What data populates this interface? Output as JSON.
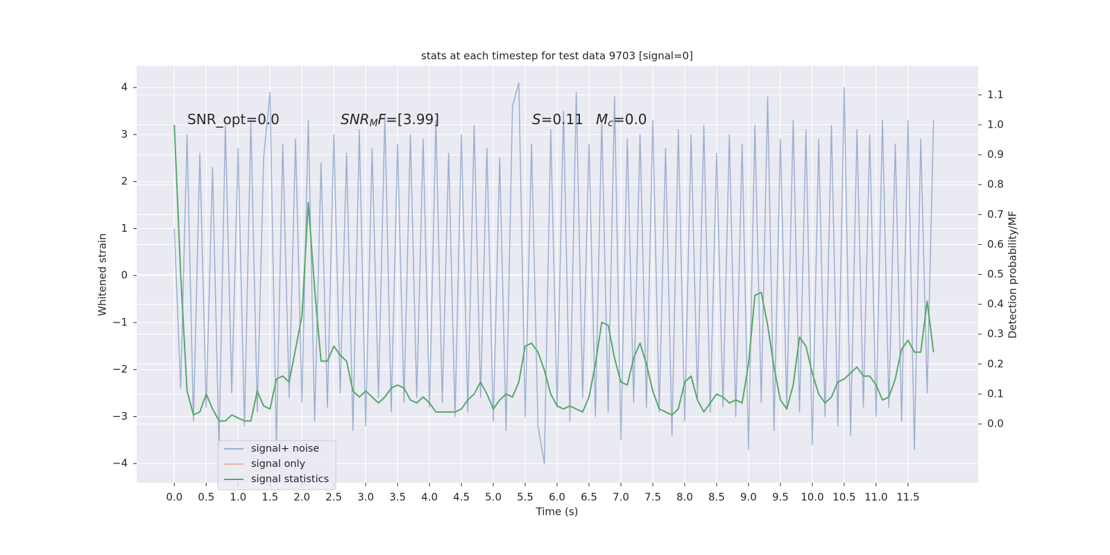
{
  "chart_data": {
    "type": "line",
    "title": "stats at each timestep for test data 9703 [signal=0]",
    "xlabel": "Time (s)",
    "ylabel": "Whitened strain",
    "y2label": "Detection probability/MF",
    "annotations": [
      [
        "SNR_opt=0.0"
      ],
      [
        "SNR",
        "M",
        "F",
        "=[3.99]"
      ],
      [
        "S",
        "=0.11"
      ],
      [
        "M",
        "c",
        "=0.0"
      ]
    ],
    "grid": true,
    "legend": "lower left",
    "xlim": [
      -0.59,
      12.6
    ],
    "ylim": [
      -4.41,
      4.46
    ],
    "y2lim": [
      -0.197,
      1.197
    ],
    "xticks": [
      {
        "value": 0,
        "label": "0.0"
      },
      {
        "value": 0.5,
        "label": "0.5"
      },
      {
        "value": 1,
        "label": "1.0"
      },
      {
        "value": 1.5,
        "label": "1.5"
      },
      {
        "value": 2,
        "label": "2.0"
      },
      {
        "value": 2.5,
        "label": "2.5"
      },
      {
        "value": 3,
        "label": "3.0"
      },
      {
        "value": 3.5,
        "label": "3.5"
      },
      {
        "value": 4,
        "label": "4.0"
      },
      {
        "value": 4.5,
        "label": "4.5"
      },
      {
        "value": 5,
        "label": "5.0"
      },
      {
        "value": 5.5,
        "label": "5.5"
      },
      {
        "value": 6,
        "label": "6.0"
      },
      {
        "value": 6.5,
        "label": "6.5"
      },
      {
        "value": 7,
        "label": "7.0"
      },
      {
        "value": 7.5,
        "label": "7.5"
      },
      {
        "value": 8,
        "label": "8.0"
      },
      {
        "value": 8.5,
        "label": "8.5"
      },
      {
        "value": 9,
        "label": "9.0"
      },
      {
        "value": 9.5,
        "label": "9.5"
      },
      {
        "value": 10,
        "label": "10.0"
      },
      {
        "value": 10.5,
        "label": "10.5"
      },
      {
        "value": 11,
        "label": "11.0"
      },
      {
        "value": 11.5,
        "label": "11.5"
      }
    ],
    "yticks": [
      {
        "value": -4,
        "label": "−4"
      },
      {
        "value": -3,
        "label": "−3"
      },
      {
        "value": -2,
        "label": "−2"
      },
      {
        "value": -1,
        "label": "−1"
      },
      0,
      1,
      2,
      3,
      4
    ],
    "y2ticks": [
      {
        "value": 0,
        "label": "0.0"
      },
      0.1,
      0.2,
      0.3,
      0.4,
      0.5,
      0.6,
      0.7,
      0.8,
      0.9,
      {
        "value": 1,
        "label": "1.0"
      },
      1.1
    ],
    "x": [
      0,
      0.1,
      0.2,
      0.3,
      0.4,
      0.5,
      0.6,
      0.7,
      0.8,
      0.9,
      1,
      1.1,
      1.2,
      1.3,
      1.4,
      1.5,
      1.6,
      1.7,
      1.8,
      1.9,
      2,
      2.1,
      2.2,
      2.3,
      2.4,
      2.5,
      2.6,
      2.7,
      2.8,
      2.9,
      3,
      3.1,
      3.2,
      3.3,
      3.4,
      3.5,
      3.6,
      3.7,
      3.8,
      3.9,
      4,
      4.1,
      4.2,
      4.3,
      4.4,
      4.5,
      4.6,
      4.7,
      4.8,
      4.9,
      5,
      5.1,
      5.2,
      5.3,
      5.4,
      5.5,
      5.6,
      5.7,
      5.8,
      5.9,
      6,
      6.1,
      6.2,
      6.3,
      6.4,
      6.5,
      6.6,
      6.7,
      6.8,
      6.9,
      7,
      7.1,
      7.2,
      7.3,
      7.4,
      7.5,
      7.6,
      7.7,
      7.8,
      7.9,
      8,
      8.1,
      8.2,
      8.3,
      8.4,
      8.5,
      8.6,
      8.7,
      8.8,
      8.9,
      9,
      9.1,
      9.2,
      9.3,
      9.4,
      9.5,
      9.6,
      9.7,
      9.8,
      9.9,
      10,
      10.1,
      10.2,
      10.3,
      10.4,
      10.5,
      10.6,
      10.7,
      10.8,
      10.9,
      11,
      11.1,
      11.2,
      11.3,
      11.4,
      11.5,
      11.6,
      11.7,
      11.8,
      11.9
    ],
    "series": [
      {
        "name": "signal+ noise",
        "color": "#4c72b0",
        "alpha": 0.5,
        "axis": "y",
        "values": [
          1.0,
          -2.4,
          3.0,
          -3.1,
          2.6,
          -2.8,
          2.3,
          -3.7,
          3.2,
          -2.5,
          2.7,
          -3.2,
          3.3,
          -2.9,
          2.5,
          3.9,
          -3.6,
          2.8,
          -2.6,
          2.9,
          -2.7,
          3.3,
          -3.1,
          2.4,
          -2.8,
          3.0,
          -2.5,
          2.6,
          -3.3,
          3.1,
          -3.2,
          2.7,
          -2.6,
          3.4,
          -2.9,
          2.8,
          -2.7,
          3.0,
          -2.6,
          2.9,
          -2.8,
          3.3,
          -2.7,
          2.6,
          -3.0,
          3.0,
          -2.9,
          3.2,
          -2.6,
          2.7,
          -3.1,
          2.5,
          -3.3,
          3.6,
          4.1,
          -3.0,
          2.8,
          -3.2,
          -4.0,
          3.1,
          -2.8,
          3.5,
          -3.1,
          3.9,
          -2.6,
          2.8,
          -3.0,
          3.3,
          -2.9,
          3.8,
          -3.5,
          2.9,
          -2.7,
          3.0,
          -2.8,
          3.3,
          -2.9,
          2.7,
          -3.4,
          3.1,
          -3.1,
          3.0,
          -2.6,
          3.2,
          -2.9,
          2.6,
          -2.8,
          3.0,
          -3.0,
          2.8,
          -3.7,
          3.2,
          -2.7,
          3.8,
          -3.3,
          2.9,
          -2.8,
          3.3,
          -2.9,
          3.1,
          -3.6,
          2.9,
          -3.0,
          3.2,
          -3.2,
          4.0,
          -3.4,
          3.1,
          -2.8,
          3.0,
          -3.0,
          3.3,
          -2.8,
          2.8,
          -3.1,
          3.3,
          -3.7,
          2.9,
          -2.5,
          3.3
        ]
      },
      {
        "name": "signal only",
        "color": "#dd8452",
        "alpha": 0.5,
        "axis": "y"
      },
      {
        "name": "signal statistics",
        "color": "#55a868",
        "alpha": 1,
        "axis": "y2",
        "values": [
          1.0,
          0.5,
          0.11,
          0.03,
          0.04,
          0.1,
          0.05,
          0.01,
          0.01,
          0.03,
          0.02,
          0.01,
          0.01,
          0.11,
          0.06,
          0.05,
          0.15,
          0.16,
          0.14,
          0.25,
          0.36,
          0.74,
          0.45,
          0.21,
          0.21,
          0.26,
          0.23,
          0.21,
          0.11,
          0.09,
          0.11,
          0.09,
          0.07,
          0.09,
          0.12,
          0.13,
          0.12,
          0.08,
          0.07,
          0.09,
          0.07,
          0.04,
          0.04,
          0.04,
          0.04,
          0.05,
          0.08,
          0.1,
          0.14,
          0.1,
          0.05,
          0.08,
          0.1,
          0.09,
          0.14,
          0.26,
          0.27,
          0.24,
          0.18,
          0.1,
          0.06,
          0.05,
          0.06,
          0.05,
          0.04,
          0.09,
          0.2,
          0.34,
          0.33,
          0.22,
          0.14,
          0.13,
          0.22,
          0.27,
          0.2,
          0.11,
          0.05,
          0.04,
          0.03,
          0.05,
          0.14,
          0.16,
          0.08,
          0.04,
          0.07,
          0.1,
          0.09,
          0.07,
          0.08,
          0.07,
          0.2,
          0.43,
          0.44,
          0.33,
          0.19,
          0.08,
          0.05,
          0.13,
          0.29,
          0.26,
          0.17,
          0.1,
          0.07,
          0.09,
          0.14,
          0.15,
          0.17,
          0.19,
          0.16,
          0.16,
          0.13,
          0.08,
          0.09,
          0.15,
          0.25,
          0.28,
          0.24,
          0.24,
          0.41,
          0.24
        ]
      }
    ]
  }
}
